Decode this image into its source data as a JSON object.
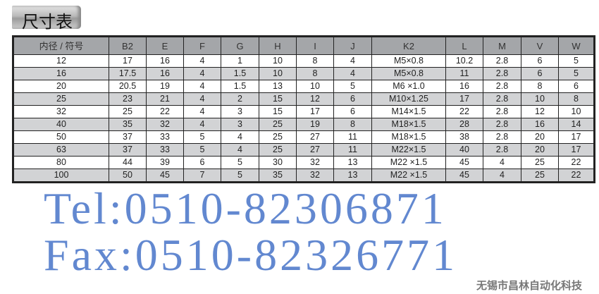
{
  "title": "尺寸表",
  "headers": [
    "内径 / 符号",
    "B2",
    "E",
    "F",
    "G",
    "H",
    "I",
    "J",
    "K2",
    "L",
    "M",
    "V",
    "W"
  ],
  "rows": [
    [
      "12",
      "17",
      "16",
      "4",
      "1",
      "10",
      "8",
      "4",
      "M5×0.8",
      "10.2",
      "2.8",
      "6",
      "5"
    ],
    [
      "16",
      "17.5",
      "16",
      "4",
      "1.5",
      "10",
      "8",
      "4",
      "M5×0.8",
      "11",
      "2.8",
      "6",
      "5"
    ],
    [
      "20",
      "20.5",
      "19",
      "4",
      "1.5",
      "13",
      "10",
      "5",
      "M6 ×1.0",
      "16",
      "2.8",
      "8",
      "6"
    ],
    [
      "25",
      "23",
      "21",
      "4",
      "2",
      "15",
      "12",
      "6",
      "M10×1.25",
      "17",
      "2.8",
      "10",
      "8"
    ],
    [
      "32",
      "25",
      "22",
      "4",
      "3",
      "15",
      "17",
      "6",
      "M14×1.5",
      "22",
      "2.8",
      "12",
      "10"
    ],
    [
      "40",
      "35",
      "32",
      "4",
      "3",
      "25",
      "19",
      "8",
      "M18×1.5",
      "28",
      "2.8",
      "16",
      "14"
    ],
    [
      "50",
      "37",
      "33",
      "5",
      "4",
      "25",
      "27",
      "11",
      "M18×1.5",
      "38",
      "2.8",
      "20",
      "17"
    ],
    [
      "63",
      "37",
      "33",
      "5",
      "4",
      "25",
      "27",
      "11",
      "M22×1.5",
      "40",
      "2.8",
      "20",
      "17"
    ],
    [
      "80",
      "44",
      "39",
      "6",
      "5",
      "30",
      "32",
      "13",
      "M22 ×1.5",
      "45",
      "4",
      "25",
      "22"
    ],
    [
      "100",
      "50",
      "45",
      "7",
      "5",
      "35",
      "32",
      "13",
      "M22 ×1.5",
      "45",
      "4",
      "25",
      "22"
    ]
  ],
  "watermark": {
    "tel": "Tel:0510-82306871",
    "fax": "Fax:0510-82326771",
    "company": "无锡市昌林自动化科技"
  }
}
